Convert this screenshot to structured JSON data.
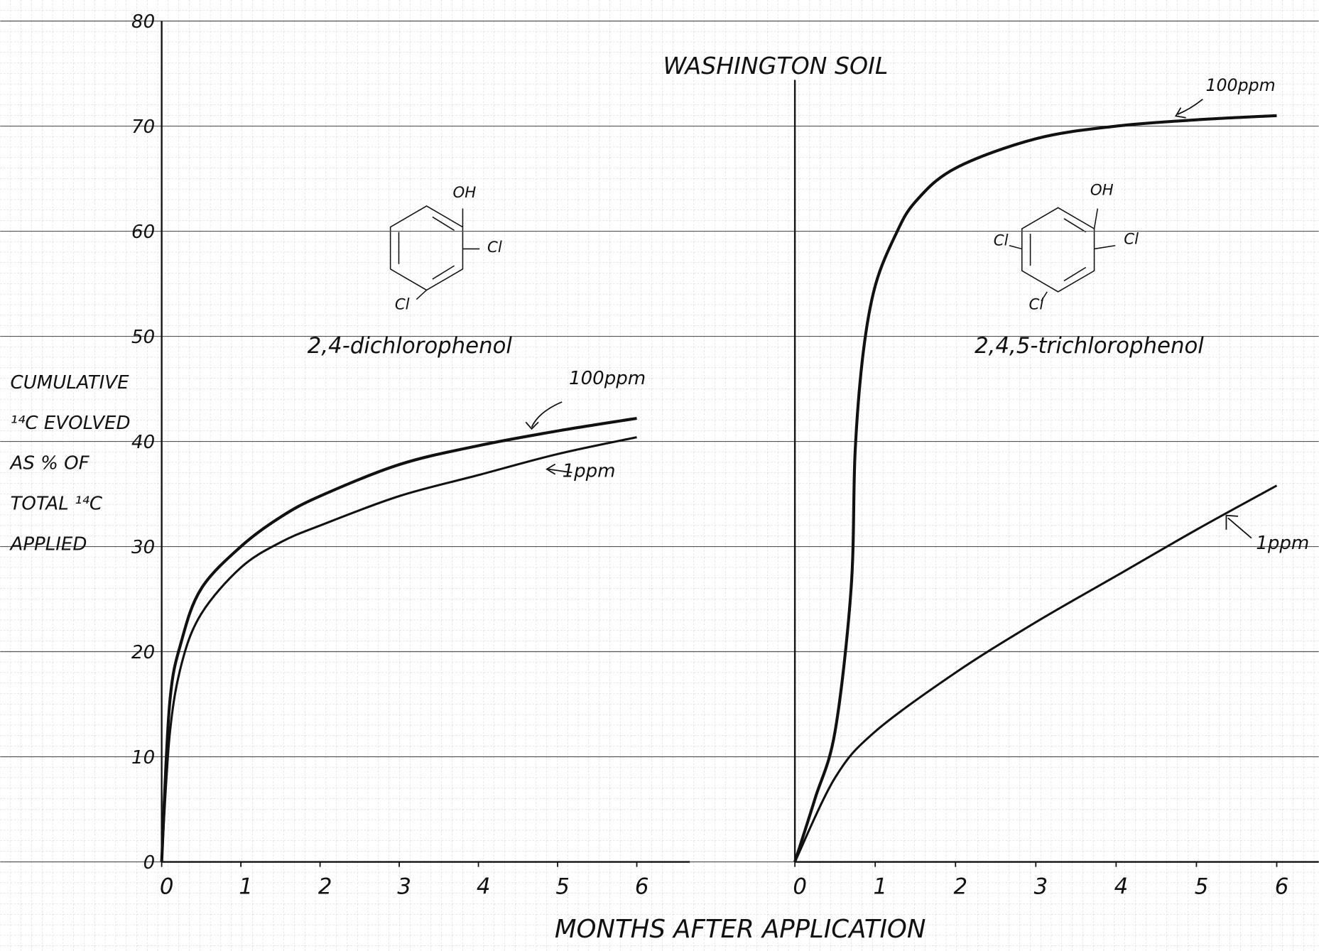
{
  "chart_data": [
    {
      "type": "line",
      "title": "WASHINGTON SOIL",
      "xlabel": "MONTHS AFTER APPLICATION",
      "ylabel": [
        "CUMULATIVE",
        "¹⁴C EVOLVED",
        "AS % OF",
        "TOTAL ¹⁴C",
        "APPLIED"
      ],
      "annotations": [
        "2,4-dichlorophenol",
        "100ppm",
        "1ppm"
      ],
      "molecule_labels": [
        "OH",
        "Cl",
        "Cl"
      ],
      "x": [
        0,
        0.1,
        0.25,
        0.5,
        1,
        1.5,
        2,
        3,
        4,
        5,
        6
      ],
      "series": [
        {
          "color": "#111111",
          "values": [
            0,
            15,
            21,
            26,
            30,
            32.8,
            34.8,
            37.8,
            39.6,
            41,
            42.2
          ]
        },
        {
          "color": "#111111",
          "values": [
            0,
            12,
            18.8,
            23.6,
            28,
            30.4,
            32,
            34.8,
            36.8,
            38.8,
            40.4
          ]
        }
      ],
      "xlim": [
        0,
        6
      ],
      "xticks": [
        0,
        1,
        2,
        3,
        4,
        5,
        6
      ],
      "ylim": [
        0,
        80
      ],
      "yticks": [
        0,
        10,
        20,
        30,
        40,
        50,
        60,
        70,
        80
      ],
      "grid": true
    },
    {
      "type": "line",
      "annotations": [
        "2,4,5-trichlorophenol",
        "100ppm",
        "1ppm"
      ],
      "molecule_labels": [
        "OH",
        "Cl",
        "Cl",
        "Cl"
      ],
      "series": [
        {
          "color": "#111111",
          "x": [
            0,
            0.25,
            0.5,
            0.7,
            0.75,
            0.85,
            1,
            1.25,
            1.5,
            2,
            3,
            4,
            5,
            6
          ],
          "values": [
            0,
            6,
            12.4,
            26,
            39,
            48.4,
            54.8,
            59.6,
            62.8,
            66,
            68.8,
            70,
            70.6,
            71
          ]
        },
        {
          "color": "#111111",
          "x": [
            0,
            0.5,
            1,
            2,
            3,
            4,
            5,
            6
          ],
          "values": [
            0,
            8,
            12.4,
            18,
            22.8,
            27.2,
            31.6,
            35.8
          ]
        }
      ],
      "xlim": [
        0,
        6
      ],
      "xticks": [
        0,
        1,
        2,
        3,
        4,
        5,
        6
      ],
      "ylim": [
        0,
        80
      ]
    }
  ]
}
